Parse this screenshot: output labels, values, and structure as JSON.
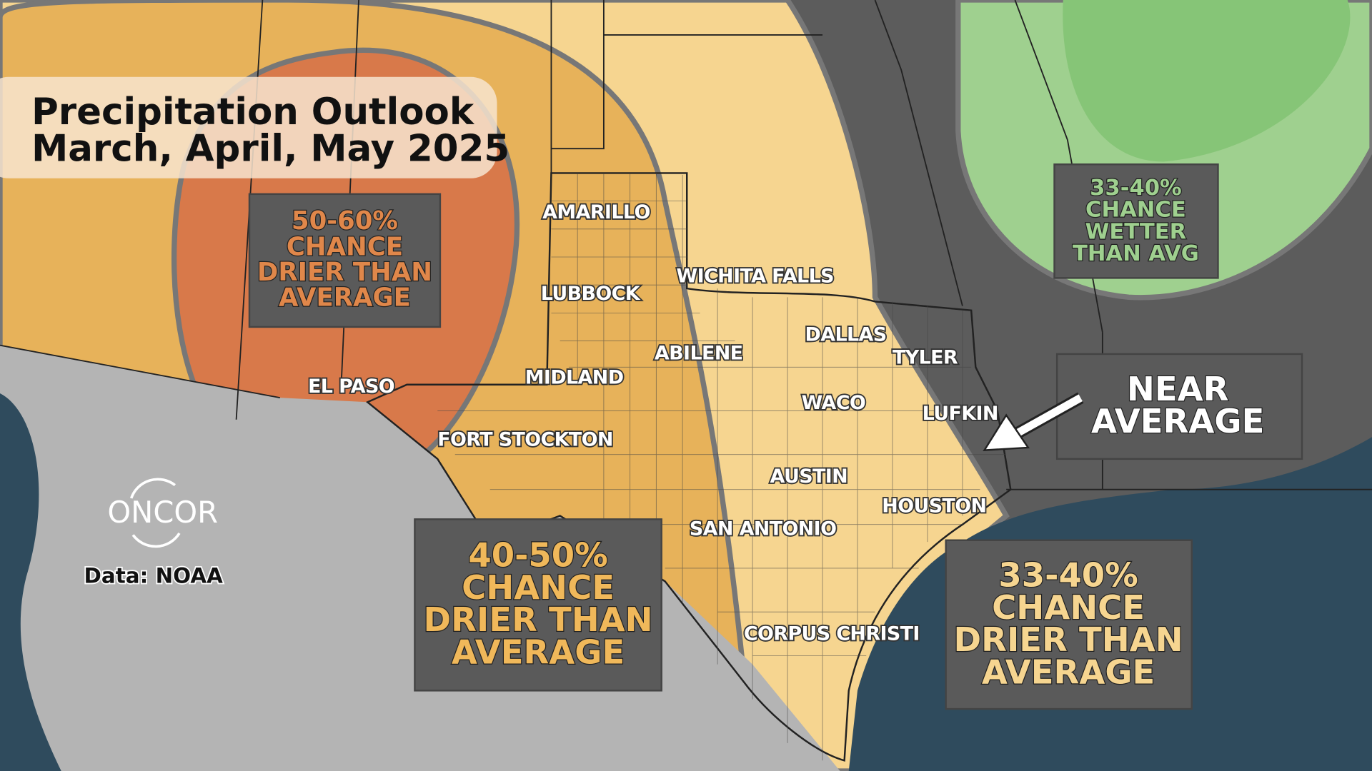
{
  "title": {
    "line1": "Precipitation Outlook",
    "line2": "March, April, May 2025"
  },
  "colors": {
    "near_average": "#5c5c5c",
    "drier_33_40": "#f6d590",
    "drier_40_50": "#e7b25a",
    "drier_50_60": "#d8794a",
    "wetter_33_40": "#9fd08f",
    "mexico_land": "#b4b4b4",
    "ocean": "#2f4b5d"
  },
  "outlooks": [
    {
      "lines": [
        "50-60%",
        "CHANCE",
        "DRIER THAN",
        "AVERAGE"
      ],
      "color": "#e0874a"
    },
    {
      "lines": [
        "40-50%",
        "CHANCE",
        "DRIER THAN",
        "AVERAGE"
      ],
      "color": "#f0b85a"
    },
    {
      "lines": [
        "33-40%",
        "CHANCE",
        "DRIER THAN",
        "AVERAGE"
      ],
      "color": "#f6d590"
    },
    {
      "lines": [
        "33-40%",
        "CHANCE",
        "WETTER",
        "THAN AVG"
      ],
      "color": "#9fd08f"
    },
    {
      "lines": [
        "NEAR",
        "AVERAGE"
      ],
      "color": "#ffffff"
    }
  ],
  "cities": [
    "AMARILLO",
    "LUBBOCK",
    "WICHITA FALLS",
    "DALLAS",
    "TYLER",
    "ABILENE",
    "MIDLAND",
    "EL PASO",
    "WACO",
    "LUFKIN",
    "FORT STOCKTON",
    "AUSTIN",
    "HOUSTON",
    "SAN ANTONIO",
    "CORPUS CHRISTI"
  ],
  "logo": "ONCOR",
  "source": "Data: NOAA"
}
